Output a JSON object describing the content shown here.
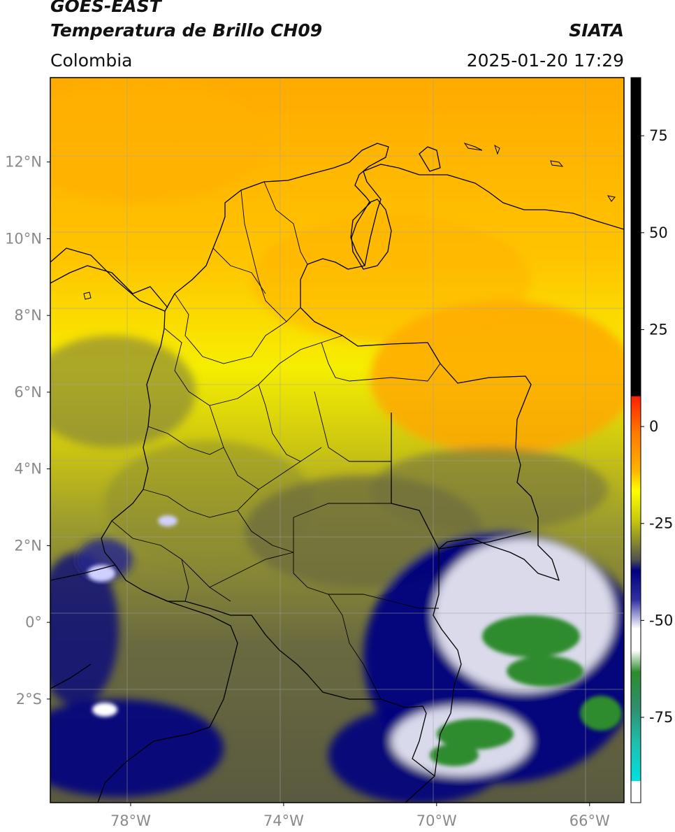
{
  "header": {
    "satellite": "GOES-EAST",
    "product": "Temperatura de Brillo CH09",
    "region": "Colombia",
    "agency": "SIATA",
    "datetime": "2025-01-20 17:29"
  },
  "map": {
    "lon_range": [
      -80.1,
      -65.1
    ],
    "lat_range": [
      -4.7,
      14.2
    ],
    "grid": true,
    "lat_ticks": [
      {
        "value": 12,
        "label": "12°N"
      },
      {
        "value": 10,
        "label": "10°N"
      },
      {
        "value": 8,
        "label": "8°N"
      },
      {
        "value": 6,
        "label": "6°N"
      },
      {
        "value": 4,
        "label": "4°N"
      },
      {
        "value": 2,
        "label": "2°N"
      },
      {
        "value": 0,
        "label": "0°"
      },
      {
        "value": -2,
        "label": "2°S"
      }
    ],
    "lon_ticks": [
      {
        "value": -78,
        "label": "78°W"
      },
      {
        "value": -74,
        "label": "74°W"
      },
      {
        "value": -70,
        "label": "70°W"
      },
      {
        "value": -66,
        "label": "66°W"
      }
    ]
  },
  "colorbar": {
    "range": [
      -97,
      90
    ],
    "ticks": [
      {
        "value": 75,
        "label": "75"
      },
      {
        "value": 50,
        "label": "50"
      },
      {
        "value": 25,
        "label": "25"
      },
      {
        "value": 0,
        "label": "0"
      },
      {
        "value": -25,
        "label": "-25"
      },
      {
        "value": -50,
        "label": "-50"
      },
      {
        "value": -75,
        "label": "-75"
      }
    ],
    "colors": {
      "black": "#000000",
      "red": "#ff2000",
      "orange": "#ffa500",
      "yellow": "#ffff00",
      "olive": "#9a9a30",
      "gray": "#505050",
      "navy": "#000080",
      "white": "#ffffff",
      "green": "#2e8b2e",
      "cyan": "#00e0e0"
    }
  }
}
